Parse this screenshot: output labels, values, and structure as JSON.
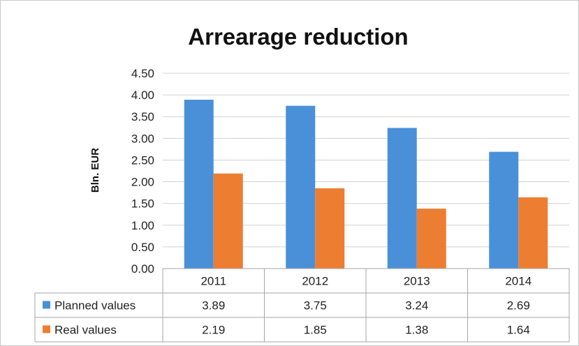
{
  "chart_data": {
    "type": "bar",
    "title": "Arrearage reduction",
    "ylabel": "Bln. EUR",
    "xlabel": "",
    "categories": [
      "2011",
      "2012",
      "2013",
      "2014"
    ],
    "ylim": [
      0,
      4.5
    ],
    "yticks": [
      "0.00",
      "0.50",
      "1.00",
      "1.50",
      "2.00",
      "2.50",
      "3.00",
      "3.50",
      "4.00",
      "4.50"
    ],
    "grid": true,
    "legend": "data-table",
    "series": [
      {
        "name": "Planned values",
        "values": [
          3.89,
          3.75,
          3.24,
          2.69
        ],
        "labels": [
          "3.89",
          "3.75",
          "3.24",
          "2.69"
        ],
        "color": "#4a90d9"
      },
      {
        "name": "Real values",
        "values": [
          2.19,
          1.85,
          1.38,
          1.64
        ],
        "labels": [
          "2.19",
          "1.85",
          "1.38",
          "1.64"
        ],
        "color": "#ed7d31"
      }
    ]
  }
}
